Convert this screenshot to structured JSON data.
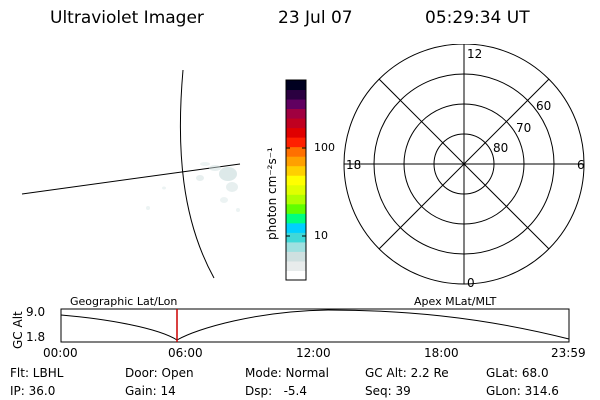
{
  "header": {
    "title": "Ultraviolet Imager",
    "date": "23 Jul 07",
    "time": "05:29:34 UT"
  },
  "colorbar": {
    "label": "photon cm⁻²s⁻¹",
    "tick_100": "100",
    "tick_10": "10",
    "colors": [
      "#ffffff",
      "#e8ecec",
      "#cfe0e0",
      "#9fe0e0",
      "#40d8d8",
      "#00d0ff",
      "#00ff80",
      "#60ff00",
      "#b0ff00",
      "#e0ff00",
      "#ffff00",
      "#ffd000",
      "#ffa000",
      "#ff7000",
      "#ff2000",
      "#e00000",
      "#c00020",
      "#a00040",
      "#600060",
      "#2a0040",
      "#000020"
    ]
  },
  "polar": {
    "label_12": "12",
    "label_6": "6",
    "label_18": "18",
    "label_0": "0",
    "lat_60": "60",
    "lat_70": "70",
    "lat_80": "80"
  },
  "timeline": {
    "ylabel": "GC Alt",
    "y_hi": "9.0",
    "y_lo": "1.8",
    "left_label": "Geographic Lat/Lon",
    "right_label": "Apex MLat/MLT",
    "ticks": [
      "00:00",
      "06:00",
      "12:00",
      "18:00",
      "23:59"
    ],
    "marker_color": "#cc0000"
  },
  "status": {
    "row1": [
      "Flt: LBHL",
      "Door: Open",
      "Mode: Normal",
      "GC Alt: 2.2 Re",
      "GLat: 68.0"
    ],
    "row2": [
      "IP: 36.0",
      "Gain: 14",
      "Dsp:   -5.4",
      "Seq: 39",
      "GLon: 314.6"
    ]
  }
}
